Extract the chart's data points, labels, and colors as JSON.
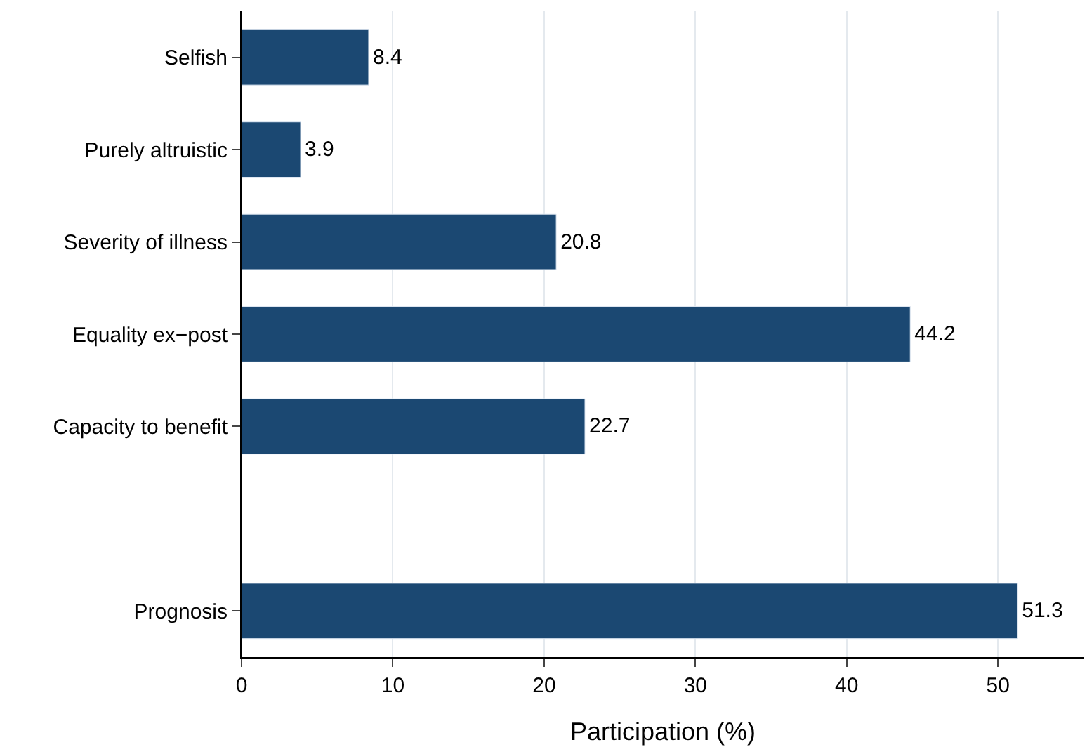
{
  "chart_data": {
    "type": "bar",
    "orientation": "horizontal",
    "xlabel": "Participation (%)",
    "categories": [
      "Selfish",
      "Purely altruistic",
      "Severity of illness",
      "Equality ex−post",
      "Capacity to benefit",
      null,
      "Prognosis"
    ],
    "values": [
      8.4,
      3.9,
      20.8,
      44.2,
      22.7,
      null,
      51.3
    ],
    "color": "#1b4872",
    "data_labels": true,
    "xlim": [
      0,
      55.7
    ],
    "xticks": [
      0,
      10,
      20,
      30,
      40,
      50
    ],
    "grid": "x",
    "legend": false
  }
}
